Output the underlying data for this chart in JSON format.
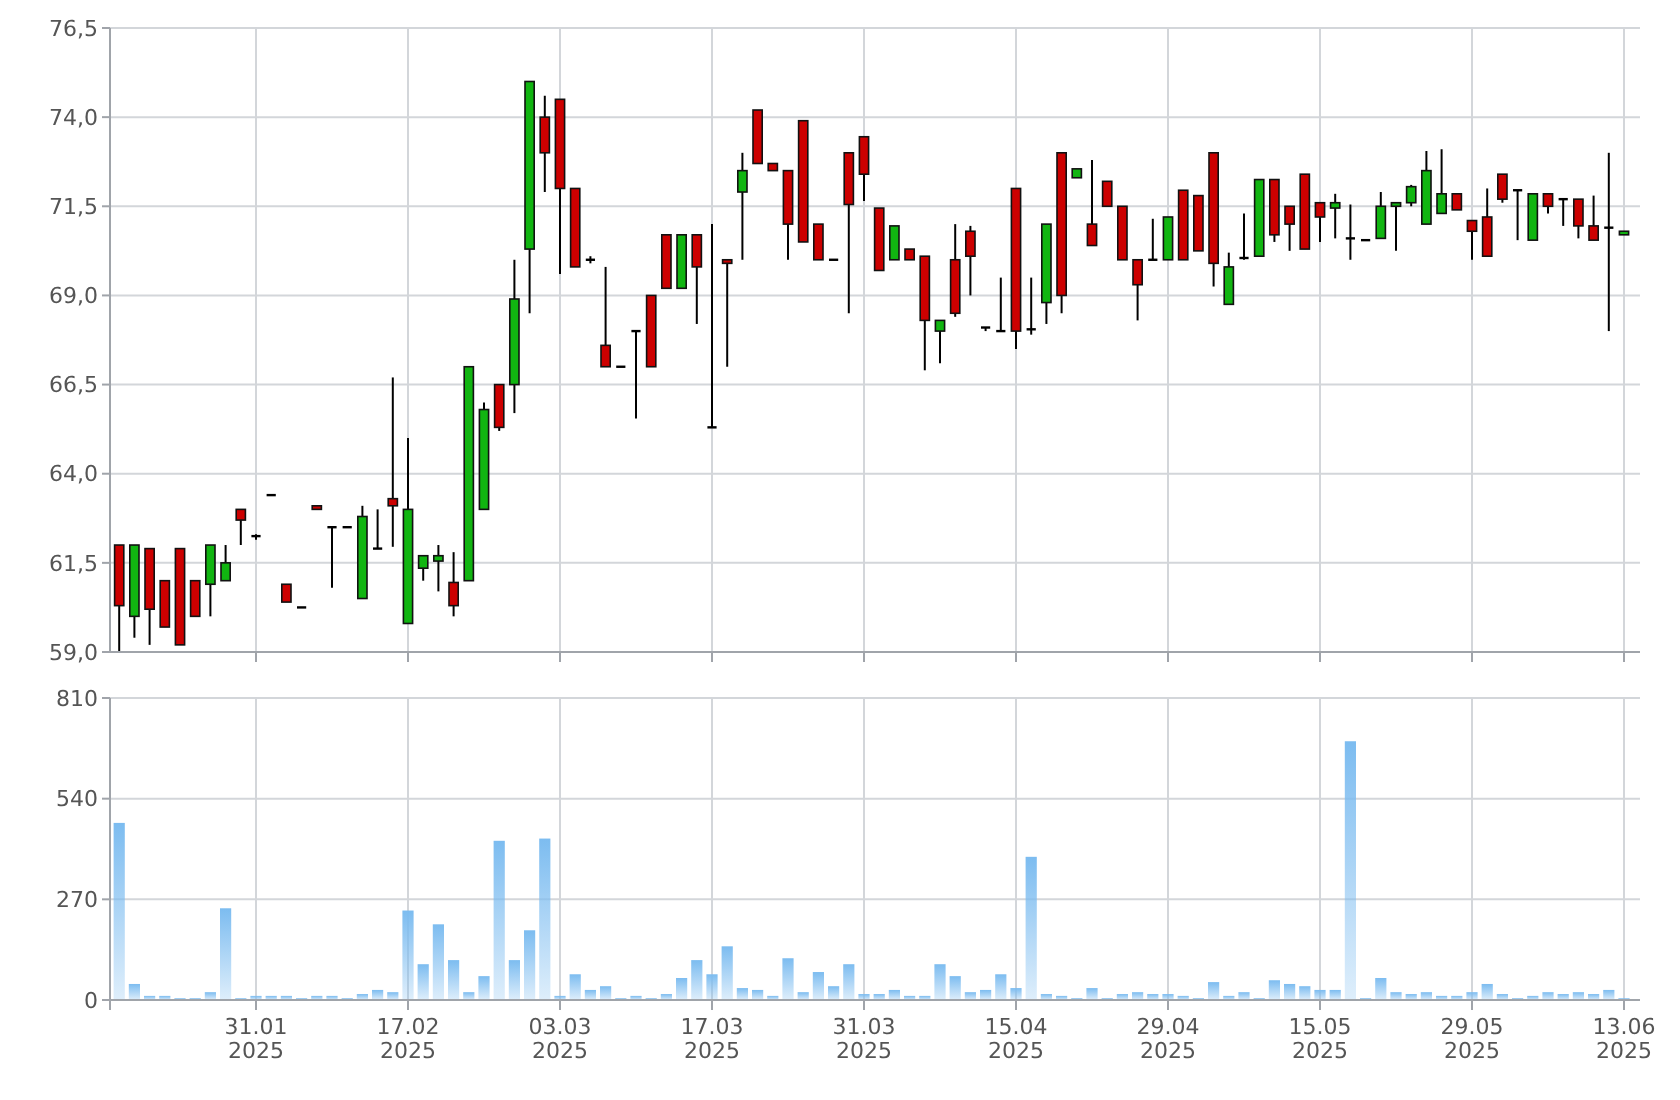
{
  "chart_data": [
    {
      "type": "candlestick",
      "categories": [
        null,
        null,
        null,
        null,
        null,
        null,
        null,
        null,
        null,
        null,
        null,
        null,
        null,
        null,
        null,
        null,
        null,
        null,
        null,
        null,
        null,
        null,
        null,
        null,
        null,
        null,
        null,
        null,
        null,
        null,
        null,
        null,
        null,
        null,
        null,
        null,
        null,
        null,
        null,
        null,
        null,
        null,
        null,
        null,
        null,
        null,
        null,
        null,
        null,
        null,
        null,
        null,
        null,
        null,
        null,
        null,
        null,
        null,
        null,
        null,
        null,
        null,
        null,
        null,
        null,
        null,
        null,
        null,
        null,
        null,
        null,
        null,
        null,
        null,
        null,
        null,
        null,
        null,
        null,
        null,
        null,
        null,
        null,
        null,
        null,
        null,
        null,
        null,
        null,
        null,
        null,
        null,
        null,
        null,
        null,
        null,
        null,
        null,
        null,
        null
      ],
      "ohlc": [
        [
          62.0,
          62.0,
          59.0,
          60.3
        ],
        [
          60.0,
          62.0,
          59.4,
          62.0
        ],
        [
          61.9,
          61.9,
          59.2,
          60.2
        ],
        [
          61.0,
          61.0,
          59.7,
          59.7
        ],
        [
          61.9,
          61.9,
          59.2,
          59.2
        ],
        [
          61.0,
          61.0,
          60.0,
          60.0
        ],
        [
          60.9,
          62.0,
          60.0,
          62.0
        ],
        [
          61.0,
          62.0,
          61.0,
          61.5
        ],
        [
          63.0,
          63.0,
          62.0,
          62.7
        ],
        [
          62.25,
          62.3,
          62.15,
          62.25
        ],
        [
          63.4,
          63.4,
          63.4,
          63.4
        ],
        [
          60.9,
          60.9,
          60.4,
          60.4
        ],
        [
          60.25,
          60.25,
          60.25,
          60.25
        ],
        [
          63.1,
          63.1,
          63.0,
          63.0
        ],
        [
          62.5,
          62.5,
          60.8,
          62.5
        ],
        [
          62.5,
          62.5,
          62.5,
          62.5
        ],
        [
          60.5,
          63.1,
          60.5,
          62.8
        ],
        [
          61.9,
          63.0,
          61.9,
          61.9
        ],
        [
          63.3,
          66.7,
          61.95,
          63.1
        ],
        [
          59.8,
          65.0,
          59.8,
          63.0
        ],
        [
          61.35,
          61.7,
          61.0,
          61.7
        ],
        [
          61.55,
          62.0,
          60.7,
          61.7
        ],
        [
          60.95,
          61.8,
          60.0,
          60.3
        ],
        [
          61.0,
          67.0,
          61.0,
          67.0
        ],
        [
          63.0,
          66.0,
          63.0,
          65.8
        ],
        [
          66.5,
          66.5,
          65.2,
          65.3
        ],
        [
          66.5,
          70.0,
          65.7,
          68.9
        ],
        [
          70.3,
          75.0,
          68.5,
          75.0
        ],
        [
          74.0,
          74.6,
          71.9,
          73.0
        ],
        [
          74.5,
          74.5,
          69.6,
          72.0
        ],
        [
          72.0,
          72.0,
          69.8,
          69.8
        ],
        [
          70.0,
          70.1,
          69.9,
          70.0
        ],
        [
          67.6,
          69.8,
          67.0,
          67.0
        ],
        [
          67.0,
          67.0,
          67.0,
          67.0
        ],
        [
          68.0,
          68.0,
          65.55,
          68.0
        ],
        [
          69.0,
          69.0,
          67.0,
          67.0
        ],
        [
          70.7,
          70.7,
          69.2,
          69.2
        ],
        [
          69.2,
          70.7,
          69.2,
          70.7
        ],
        [
          70.7,
          70.7,
          68.2,
          69.8
        ],
        [
          65.3,
          71.0,
          65.3,
          65.3
        ],
        [
          70.0,
          70.0,
          67.0,
          69.9
        ],
        [
          71.9,
          73.0,
          70.0,
          72.5
        ],
        [
          74.2,
          74.2,
          72.7,
          72.7
        ],
        [
          72.7,
          72.7,
          72.5,
          72.5
        ],
        [
          72.5,
          72.5,
          70.0,
          71.0
        ],
        [
          73.9,
          73.9,
          70.5,
          70.5
        ],
        [
          71.0,
          71.0,
          70.0,
          70.0
        ],
        [
          70.0,
          70.0,
          70.0,
          70.0
        ],
        [
          73.0,
          73.0,
          68.5,
          71.55
        ],
        [
          73.45,
          73.45,
          71.65,
          72.4
        ],
        [
          71.45,
          71.45,
          69.7,
          69.7
        ],
        [
          70.0,
          70.95,
          70.0,
          70.95
        ],
        [
          70.3,
          70.3,
          70.0,
          70.0
        ],
        [
          70.1,
          70.1,
          66.9,
          68.3
        ],
        [
          68.0,
          68.3,
          67.1,
          68.3
        ],
        [
          70.0,
          71.0,
          68.4,
          68.5
        ],
        [
          70.8,
          70.95,
          69.0,
          70.1
        ],
        [
          68.1,
          68.1,
          68.0,
          68.1
        ],
        [
          68.0,
          69.5,
          68.0,
          68.0
        ],
        [
          72.0,
          72.0,
          67.5,
          68.0
        ],
        [
          68.05,
          69.5,
          67.9,
          68.05
        ],
        [
          68.8,
          71.0,
          68.2,
          71.0
        ],
        [
          73.0,
          73.0,
          68.5,
          69.0
        ],
        [
          72.3,
          72.55,
          72.3,
          72.55
        ],
        [
          71.0,
          72.8,
          70.4,
          70.4
        ],
        [
          72.2,
          72.2,
          71.5,
          71.5
        ],
        [
          71.5,
          71.5,
          70.0,
          70.0
        ],
        [
          70.0,
          70.0,
          68.3,
          69.3
        ],
        [
          70.0,
          71.15,
          70.0,
          70.0
        ],
        [
          70.0,
          71.2,
          70.0,
          71.2
        ],
        [
          71.95,
          71.95,
          70.0,
          70.0
        ],
        [
          71.8,
          71.8,
          70.25,
          70.25
        ],
        [
          73.0,
          73.0,
          69.25,
          69.9
        ],
        [
          68.75,
          70.2,
          68.75,
          69.8
        ],
        [
          70.05,
          71.3,
          70.0,
          70.05
        ],
        [
          70.1,
          72.25,
          70.1,
          72.25
        ],
        [
          72.25,
          72.25,
          70.5,
          70.7
        ],
        [
          71.5,
          71.5,
          70.25,
          71.0
        ],
        [
          72.4,
          72.4,
          70.3,
          70.3
        ],
        [
          71.6,
          71.6,
          70.5,
          71.2
        ],
        [
          71.45,
          71.85,
          70.6,
          71.6
        ],
        [
          70.6,
          71.55,
          70.0,
          70.6
        ],
        [
          70.55,
          70.55,
          70.55,
          70.55
        ],
        [
          70.6,
          71.9,
          70.6,
          71.5
        ],
        [
          71.5,
          71.6,
          70.25,
          71.6
        ],
        [
          71.6,
          72.1,
          71.5,
          72.05
        ],
        [
          71.0,
          73.05,
          71.0,
          72.5
        ],
        [
          71.3,
          73.1,
          71.3,
          71.85
        ],
        [
          71.85,
          71.85,
          71.4,
          71.4
        ],
        [
          71.1,
          71.1,
          70.0,
          70.8
        ],
        [
          71.2,
          72.0,
          70.1,
          70.1
        ],
        [
          72.4,
          72.4,
          71.6,
          71.7
        ],
        [
          71.95,
          71.95,
          70.55,
          71.95
        ],
        [
          70.55,
          71.85,
          70.55,
          71.85
        ],
        [
          71.85,
          71.85,
          71.3,
          71.5
        ],
        [
          71.7,
          71.7,
          70.95,
          71.7
        ],
        [
          71.7,
          71.7,
          70.6,
          70.95
        ],
        [
          70.95,
          71.8,
          70.55,
          70.55
        ],
        [
          70.9,
          73.0,
          68.0,
          70.9
        ],
        [
          70.7,
          70.8,
          70.7,
          70.8
        ]
      ],
      "colors": [
        "#cc0000",
        "#11b511",
        "#cc0000",
        "#cc0000",
        "#cc0000",
        "#cc0000",
        "#11b511",
        "#11b511",
        "#cc0000",
        "#000000",
        "#000000",
        "#cc0000",
        "#000000",
        "#cc0000",
        "#000000",
        "#000000",
        "#11b511",
        "#000000",
        "#cc0000",
        "#11b511",
        "#11b511",
        "#11b511",
        "#cc0000",
        "#11b511",
        "#11b511",
        "#cc0000",
        "#11b511",
        "#11b511",
        "#cc0000",
        "#cc0000",
        "#cc0000",
        "#000000",
        "#cc0000",
        "#000000",
        "#000000",
        "#cc0000",
        "#cc0000",
        "#11b511",
        "#cc0000",
        "#000000",
        "#cc0000",
        "#11b511",
        "#cc0000",
        "#cc0000",
        "#cc0000",
        "#cc0000",
        "#cc0000",
        "#000000",
        "#cc0000",
        "#cc0000",
        "#cc0000",
        "#11b511",
        "#cc0000",
        "#cc0000",
        "#11b511",
        "#cc0000",
        "#cc0000",
        "#000000",
        "#000000",
        "#cc0000",
        "#000000",
        "#11b511",
        "#cc0000",
        "#11b511",
        "#cc0000",
        "#cc0000",
        "#cc0000",
        "#cc0000",
        "#000000",
        "#11b511",
        "#cc0000",
        "#cc0000",
        "#cc0000",
        "#11b511",
        "#000000",
        "#11b511",
        "#cc0000",
        "#cc0000",
        "#cc0000",
        "#cc0000",
        "#11b511",
        "#000000",
        "#000000",
        "#11b511",
        "#11b511",
        "#11b511",
        "#11b511",
        "#11b511",
        "#cc0000",
        "#cc0000",
        "#cc0000",
        "#cc0000",
        "#000000",
        "#11b511",
        "#cc0000",
        "#000000",
        "#cc0000",
        "#cc0000",
        "#000000",
        "#11b511"
      ],
      "ylim": [
        59.0,
        76.5
      ],
      "yticks": [
        {
          "value": 59.0,
          "label": "59,0"
        },
        {
          "value": 61.5,
          "label": "61,5"
        },
        {
          "value": 64.0,
          "label": "64,0"
        },
        {
          "value": 66.5,
          "label": "66,5"
        },
        {
          "value": 69.0,
          "label": "69,0"
        },
        {
          "value": 71.5,
          "label": "71,5"
        },
        {
          "value": 74.0,
          "label": "74,0"
        },
        {
          "value": 76.5,
          "label": "76,5"
        }
      ],
      "grid": true,
      "tick_labels": "y"
    },
    {
      "type": "bar",
      "categories": [
        null,
        null,
        null,
        null,
        null,
        null,
        null,
        null,
        null,
        "31.01\n2025",
        null,
        null,
        null,
        null,
        null,
        null,
        null,
        null,
        null,
        "17.02\n2025",
        null,
        null,
        null,
        null,
        null,
        null,
        null,
        null,
        null,
        "03.03\n2025",
        null,
        null,
        null,
        null,
        null,
        null,
        null,
        null,
        null,
        "17.03\n2025",
        null,
        null,
        null,
        null,
        null,
        null,
        null,
        null,
        null,
        "31.03\n2025",
        null,
        null,
        null,
        null,
        null,
        null,
        null,
        null,
        null,
        "15.04\n2025",
        null,
        null,
        null,
        null,
        null,
        null,
        null,
        null,
        null,
        "29.04\n2025",
        null,
        null,
        null,
        null,
        null,
        null,
        null,
        null,
        null,
        "15.05\n2025",
        null,
        null,
        null,
        null,
        null,
        null,
        null,
        null,
        null,
        "29.05\n2025",
        null,
        null,
        null,
        null,
        null,
        null,
        null,
        null,
        null,
        "13.06\n2025"
      ],
      "values": [
        475,
        43,
        11,
        11,
        5,
        5,
        21,
        246,
        5,
        11,
        11,
        11,
        5,
        11,
        11,
        5,
        16,
        27,
        21,
        240,
        96,
        203,
        107,
        21,
        64,
        427,
        107,
        187,
        433,
        11,
        69,
        27,
        37,
        5,
        11,
        5,
        16,
        59,
        107,
        69,
        144,
        32,
        27,
        11,
        112,
        21,
        75,
        37,
        96,
        16,
        16,
        27,
        11,
        11,
        96,
        64,
        21,
        27,
        69,
        32,
        384,
        16,
        11,
        5,
        32,
        5,
        16,
        21,
        16,
        16,
        11,
        5,
        48,
        11,
        21,
        5,
        53,
        43,
        37,
        27,
        27,
        694,
        5,
        59,
        21,
        16,
        21,
        11,
        11,
        21,
        43,
        16,
        5,
        11,
        21,
        16,
        21,
        16,
        27,
        5
      ],
      "color": "#7cbcf0",
      "ylim": [
        0,
        810
      ],
      "yticks": [
        0,
        270,
        540,
        810
      ],
      "grid": true
    }
  ]
}
